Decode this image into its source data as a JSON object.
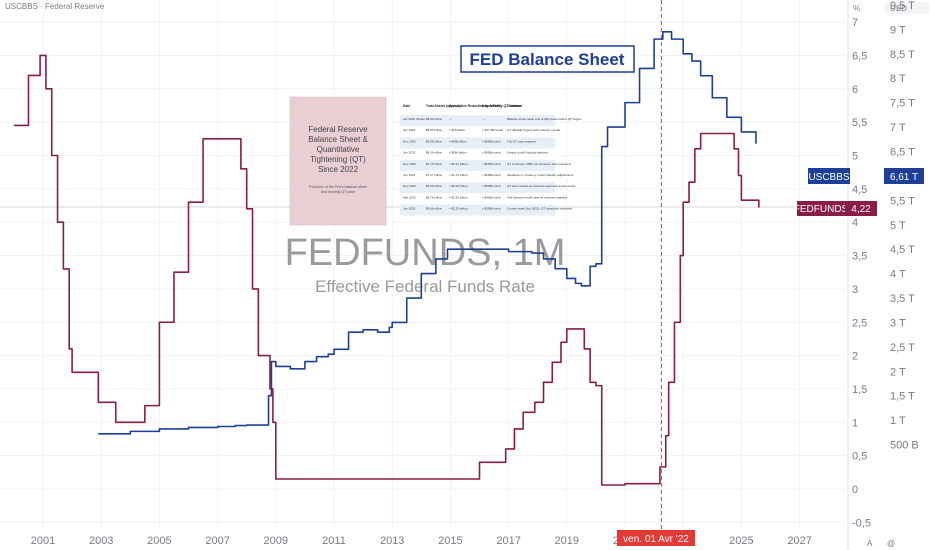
{
  "header": {
    "symbol_line": "USCBBS · Federal Reserve",
    "pct_unit": "%",
    "currency": "USD"
  },
  "title_box": "FED Balance Sheet",
  "watermark": {
    "title": "FEDFUNDS, 1M",
    "subtitle": "Effective Federal Funds Rate"
  },
  "image_panel": {
    "title_lines": [
      "Federal Reserve",
      "Balance Sheet &",
      "Quantitative",
      "Tightening (QT)",
      "Since 2022"
    ],
    "caption_lines": [
      "Evolution of the Fed's balance sheet",
      "and monthly QT pace"
    ]
  },
  "embedded_table": {
    "headers": [
      "Date",
      "Total Assets (approx.)",
      "Cumulative Reduction from Peak",
      "Avg. Monthly QT Volume",
      "Comment"
    ],
    "rows": [
      [
        "Apr 2022 (Peak)",
        "$8.96 trillion",
        "—",
        "—",
        "Balance sheet peak; end of QE phase before QT begins"
      ],
      [
        "Jun 2022",
        "$8.95 trillion",
        "≈ $10 billion",
        "≈ $47.5B/month",
        "QT officially begins with reduced runoffs"
      ],
      [
        "Dec 2022",
        "$8.55 trillion",
        "≈ $400 billion",
        "≈ $95B/month",
        "Full QT caps reached"
      ],
      [
        "Jun 2023",
        "$8.39 trillion",
        "≈ $560 billion",
        "≈ $95B/month",
        "Steady runoff; liquidity tightens"
      ],
      [
        "Dec 2023",
        "$7.75 trillion",
        "≈ $1.21 trillion",
        "≈ $95B/month",
        "QT continues; MBS runoff slower than expected"
      ],
      [
        "Jun 2024",
        "$7.27 trillion",
        "≈ $1.70 trillion",
        "≈ $60B/month",
        "Slowdown in Treasury runoff; liquidity adjustments"
      ],
      [
        "Dec 2024",
        "$6.90 trillion",
        "≈ $2.06 trillion",
        "≈ $60B/month",
        "QT pace steady as reserves approach ample levels"
      ],
      [
        "Mar 2025",
        "$6.76 trillion",
        "≈ $2.20 trillion",
        "≈ $40B/month",
        "Fed reduces runoff caps as reserves stabilize"
      ],
      [
        "Jun 2025",
        "$6.66 trillion",
        "≈ $2.30 trillion",
        "≈ $35B/month",
        "Current state (Jun 2025). QT slowdown expected"
      ]
    ]
  },
  "cursor_date": "ven. 01 Avr '22",
  "labels": {
    "balance": {
      "name": "USCBBS",
      "value": "6,61 T"
    },
    "rate": {
      "name": "FEDFUNDS",
      "value": "4,22"
    }
  },
  "footer_icons": [
    "A",
    "@"
  ],
  "colors": {
    "balance": "#1e3f99",
    "rate": "#8a1c4a",
    "cursor": "#e53935",
    "grid": "#f0f3fa"
  },
  "chart_data": {
    "type": "line",
    "x_range": [
      2000,
      2028
    ],
    "x_ticks": [
      "2001",
      "2003",
      "2005",
      "2007",
      "2009",
      "2011",
      "2013",
      "2015",
      "2017",
      "2019",
      "2021",
      "2023",
      "2025",
      "2027"
    ],
    "y_left": {
      "unit": "%",
      "range": [
        -0.7,
        7.1
      ],
      "ticks": [
        "7",
        "6,5",
        "6",
        "5,5",
        "5",
        "4,5",
        "4",
        "3,5",
        "3",
        "2,5",
        "2",
        "1,5",
        "1",
        "0,5",
        "0",
        "-0,5"
      ]
    },
    "y_right": {
      "unit": "USD trillions",
      "range": [
        0,
        9.8
      ],
      "ticks": [
        "9,5 T",
        "9 T",
        "8,5 T",
        "8 T",
        "7,5 T",
        "7 T",
        "6,5 T",
        "6 T",
        "5,5 T",
        "5 T",
        "4,5 T",
        "4 T",
        "3,5 T",
        "3 T",
        "2,5 T",
        "2 T",
        "1,5 T",
        "1 T",
        "500 B"
      ]
    },
    "series": [
      {
        "name": "FEDFUNDS",
        "axis": "left",
        "x": [
          2000.0,
          2000.5,
          2000.9,
          2001.1,
          2001.3,
          2001.5,
          2001.7,
          2001.9,
          2002.0,
          2002.9,
          2003.5,
          2004.0,
          2004.5,
          2005.0,
          2005.5,
          2006.0,
          2006.5,
          2007.0,
          2007.6,
          2007.8,
          2008.0,
          2008.2,
          2008.4,
          2008.8,
          2008.9,
          2009.0,
          2015.9,
          2016.0,
          2016.9,
          2017.2,
          2017.5,
          2017.9,
          2018.2,
          2018.5,
          2018.8,
          2019.0,
          2019.5,
          2019.6,
          2019.8,
          2020.0,
          2020.2,
          2021.0,
          2022.0,
          2022.2,
          2022.4,
          2022.5,
          2022.7,
          2022.9,
          2023.0,
          2023.2,
          2023.4,
          2023.6,
          2024.6,
          2024.75,
          2024.9,
          2025.0,
          2025.6
        ],
        "values": [
          5.45,
          6.2,
          6.5,
          6.0,
          5.0,
          4.0,
          3.3,
          2.1,
          1.75,
          1.3,
          1.0,
          1.0,
          1.25,
          2.5,
          3.25,
          4.3,
          5.25,
          5.25,
          5.25,
          4.8,
          4.2,
          3.0,
          2.0,
          1.5,
          1.0,
          0.15,
          0.15,
          0.4,
          0.6,
          0.9,
          1.15,
          1.3,
          1.6,
          1.9,
          2.2,
          2.4,
          2.4,
          2.1,
          1.6,
          1.55,
          0.06,
          0.08,
          0.08,
          0.33,
          0.8,
          1.6,
          2.5,
          3.5,
          4.3,
          4.6,
          5.1,
          5.33,
          5.33,
          5.1,
          4.7,
          4.33,
          4.22
        ]
      },
      {
        "name": "USCBBS",
        "axis": "right",
        "x": [
          2002.9,
          2004.0,
          2005.0,
          2006.0,
          2007.0,
          2007.6,
          2008.0,
          2008.6,
          2008.75,
          2008.85,
          2009.0,
          2009.5,
          2010.0,
          2010.4,
          2010.8,
          2011.0,
          2011.5,
          2012.0,
          2012.5,
          2012.9,
          2013.0,
          2013.5,
          2014.0,
          2014.5,
          2014.9,
          2015.0,
          2016.0,
          2017.0,
          2017.8,
          2018.2,
          2018.6,
          2019.0,
          2019.3,
          2019.5,
          2019.8,
          2020.0,
          2020.2,
          2020.4,
          2021.0,
          2021.5,
          2022.0,
          2022.3,
          2022.6,
          2023.0,
          2023.3,
          2023.6,
          2024.0,
          2024.5,
          2025.0,
          2025.5
        ],
        "values": [
          0.72,
          0.77,
          0.82,
          0.85,
          0.87,
          0.89,
          0.9,
          0.9,
          1.5,
          2.2,
          2.1,
          2.05,
          2.2,
          2.3,
          2.35,
          2.45,
          2.8,
          2.85,
          2.8,
          2.9,
          3.0,
          3.5,
          4.0,
          4.3,
          4.5,
          4.5,
          4.5,
          4.45,
          4.42,
          4.3,
          4.1,
          3.9,
          3.8,
          3.75,
          4.15,
          4.2,
          6.6,
          7.0,
          7.5,
          8.2,
          8.8,
          8.95,
          8.8,
          8.5,
          8.35,
          8.05,
          7.6,
          7.2,
          6.9,
          6.66
        ]
      }
    ]
  }
}
